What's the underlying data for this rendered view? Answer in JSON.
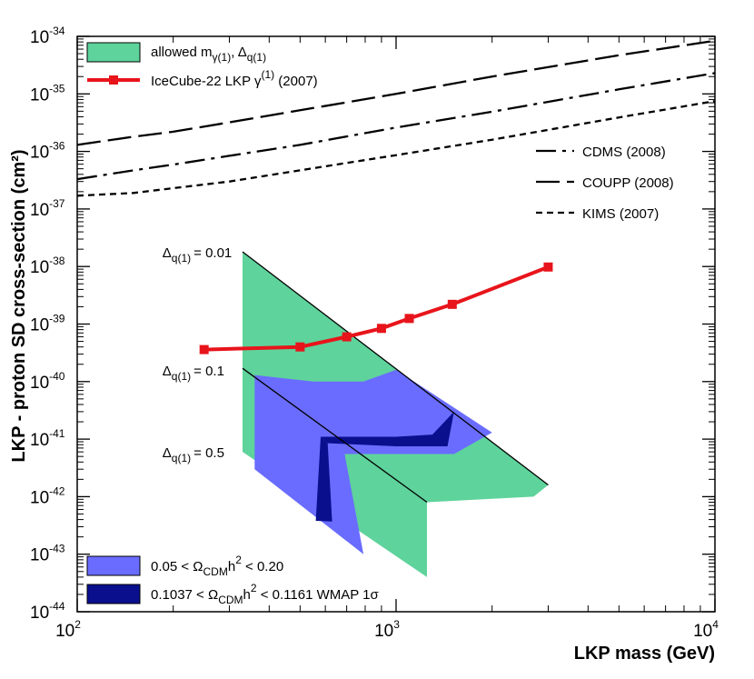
{
  "chart_data": {
    "type": "line",
    "xscale": "log",
    "yscale": "log",
    "xlim": [
      100,
      10000
    ],
    "ylim": [
      1e-44,
      1e-34
    ],
    "xlabel": "LKP mass (GeV)",
    "ylabel": "LKP - proton SD cross-section (cm²)",
    "x_ticks": [
      {
        "value": 100,
        "base": "10",
        "exp": "2"
      },
      {
        "value": 1000,
        "base": "10",
        "exp": "3"
      },
      {
        "value": 10000,
        "base": "10",
        "exp": "4"
      }
    ],
    "y_ticks": [
      {
        "value": 1e-44,
        "base": "10",
        "exp": "-44"
      },
      {
        "value": 1e-43,
        "base": "10",
        "exp": "-43"
      },
      {
        "value": 1e-42,
        "base": "10",
        "exp": "-42"
      },
      {
        "value": 1e-41,
        "base": "10",
        "exp": "-41"
      },
      {
        "value": 1e-40,
        "base": "10",
        "exp": "-40"
      },
      {
        "value": 1e-39,
        "base": "10",
        "exp": "-39"
      },
      {
        "value": 1e-38,
        "base": "10",
        "exp": "-38"
      },
      {
        "value": 1e-37,
        "base": "10",
        "exp": "-37"
      },
      {
        "value": 1e-36,
        "base": "10",
        "exp": "-36"
      },
      {
        "value": 1e-35,
        "base": "10",
        "exp": "-35"
      },
      {
        "value": 1e-34,
        "base": "10",
        "exp": "-34"
      }
    ],
    "series": [
      {
        "name": "IceCube-22 LKP γ(1) (2007)",
        "color": "#e8141b",
        "style": "solid",
        "marker": "square",
        "x": [
          250,
          500,
          700,
          900,
          1100,
          1500,
          3000
        ],
        "y": [
          3.6e-40,
          4e-40,
          6e-40,
          8.4e-40,
          1.25e-39,
          2.2e-39,
          9.8e-39
        ]
      },
      {
        "name": "CDMS (2008)",
        "color": "#000000",
        "style": "dashdot",
        "x": [
          100,
          150,
          200,
          300,
          500,
          1000,
          2000,
          5000,
          10000
        ],
        "y": [
          3.3e-37,
          4.7e-37,
          5.9e-37,
          8.4e-37,
          1.3e-36,
          2.6e-36,
          4.9e-36,
          1.2e-35,
          2.3e-35
        ]
      },
      {
        "name": "COUPP (2008)",
        "color": "#000000",
        "style": "longdash",
        "x": [
          100,
          150,
          200,
          300,
          500,
          1000,
          2000,
          5000,
          10000
        ],
        "y": [
          1.3e-36,
          1.8e-36,
          2.2e-36,
          3.2e-36,
          5.2e-36,
          1e-35,
          2e-35,
          4.7e-35,
          8.4e-35
        ]
      },
      {
        "name": "KIMS (2007)",
        "color": "#000000",
        "style": "shortdash",
        "x": [
          100,
          150,
          200,
          300,
          500,
          1000,
          2000,
          5000,
          10000
        ],
        "y": [
          1.7e-37,
          1.9e-37,
          2.3e-37,
          3e-37,
          4.7e-37,
          8.6e-37,
          1.6e-36,
          3.9e-36,
          7.5e-36
        ]
      }
    ],
    "regions": [
      {
        "name": "allowed",
        "color": "#5ed39b",
        "x": [
          330,
          3000,
          2700,
          1250,
          1250,
          330
        ],
        "y": [
          1.8e-38,
          1.6e-42,
          1e-42,
          8e-43,
          4e-44,
          6e-42
        ]
      },
      {
        "name": "omega_0.05_0.20",
        "color": "#6a6cff",
        "x": [
          360,
          550,
          790,
          1000,
          2000,
          1520,
          690,
          790,
          360
        ],
        "y": [
          1.3e-40,
          1e-40,
          1e-40,
          1.6e-40,
          1.3e-41,
          5.5e-42,
          5.5e-42,
          1e-43,
          3e-42
        ]
      },
      {
        "name": "wmap_band_upper",
        "color": "#0a0f8e",
        "x": [
          580,
          610,
          1000,
          1450,
          1520,
          1300,
          1000,
          600
        ],
        "y": [
          1.1e-41,
          8.5e-42,
          7.5e-42,
          7.5e-42,
          3e-41,
          1.2e-41,
          1.1e-41,
          1.1e-41
        ]
      },
      {
        "name": "wmap_band_lower",
        "color": "#0a0f8e",
        "x": [
          580,
          610,
          630,
          560
        ],
        "y": [
          1.1e-41,
          8.5e-42,
          3.7e-43,
          3.8e-43
        ]
      }
    ],
    "diagonal_lines": [
      {
        "x": [
          330,
          3000
        ],
        "y": [
          1.8e-38,
          1.6e-42
        ]
      },
      {
        "x": [
          330,
          1250
        ],
        "y": [
          1.7e-40,
          8e-43
        ]
      }
    ],
    "annotations": [
      {
        "id": "delta001",
        "text": "= 0.01",
        "x": 185,
        "y": 1.8e-38
      },
      {
        "id": "delta01",
        "text": "= 0.1",
        "x": 185,
        "y": 1.6e-40
      },
      {
        "id": "delta05",
        "text": "= 0.5",
        "x": 185,
        "y": 6e-42
      }
    ],
    "legend_top": [
      {
        "kind": "fill",
        "color": "#5ed39b",
        "text": "allowed m",
        "sub1": "γ(1)",
        "mid": ", Δ",
        "sub2": "q(1)"
      },
      {
        "kind": "marker",
        "color": "#e8141b",
        "text": "IceCube-22 LKP γ",
        "sup": "(1)",
        "after": " (2007)"
      }
    ],
    "legend_right": [
      {
        "style": "dashdot",
        "text": "CDMS (2008)"
      },
      {
        "style": "longdash",
        "text": "COUPP (2008)"
      },
      {
        "style": "shortdash",
        "text": "KIMS (2007)"
      }
    ],
    "legend_bottom": [
      {
        "color": "#6a6cff",
        "pre": "0.05 < Ω",
        "sub": "CDM",
        "mid": "h",
        "sup": "2",
        "post": " < 0.20"
      },
      {
        "color": "#0a0f8e",
        "pre": "0.1037 < Ω",
        "sub": "CDM",
        "mid": "h",
        "sup": "2",
        "post": " < 0.1161 WMAP 1σ"
      }
    ]
  }
}
